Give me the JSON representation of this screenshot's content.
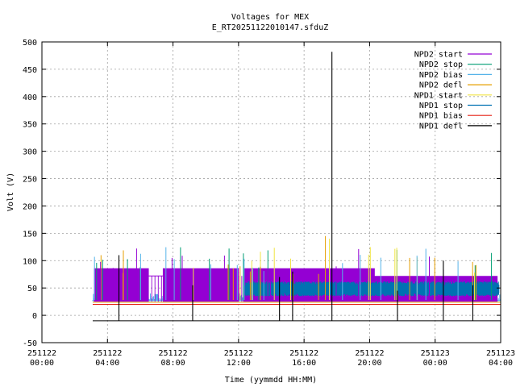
{
  "chart_data": {
    "type": "line",
    "title": "Voltages for MEX",
    "subtitle": "E_RT20251122010147.sfduZ",
    "xlabel": "Time (yymmdd HH:MM)",
    "ylabel": "Volt (V)",
    "xlim": [
      "251122 00:00",
      "251123 04:00"
    ],
    "ylim": [
      -50,
      500
    ],
    "grid": true,
    "legend_position": "top-right",
    "x_ticks": [
      {
        "l1": "251122",
        "l2": "00:00",
        "h": 0
      },
      {
        "l1": "251122",
        "l2": "04:00",
        "h": 4
      },
      {
        "l1": "251122",
        "l2": "08:00",
        "h": 8
      },
      {
        "l1": "251122",
        "l2": "12:00",
        "h": 12
      },
      {
        "l1": "251122",
        "l2": "16:00",
        "h": 16
      },
      {
        "l1": "251122",
        "l2": "20:00",
        "h": 20
      },
      {
        "l1": "251123",
        "l2": "00:00",
        "h": 24
      },
      {
        "l1": "251123",
        "l2": "04:00",
        "h": 28
      }
    ],
    "y_ticks": [
      "-50",
      "0",
      "50",
      "100",
      "150",
      "200",
      "250",
      "300",
      "350",
      "400",
      "450",
      "500"
    ],
    "series": [
      {
        "name": "NPD2 start",
        "color": "#9400d3"
      },
      {
        "name": "NPD2 stop",
        "color": "#009e73"
      },
      {
        "name": "NPD2 bias",
        "color": "#56b4e9"
      },
      {
        "name": "NPD2 defl",
        "color": "#e69f00"
      },
      {
        "name": "NPD1 start",
        "color": "#f0e442"
      },
      {
        "name": "NPD1 stop",
        "color": "#0072b2"
      },
      {
        "name": "NPD1 bias",
        "color": "#e51e10"
      },
      {
        "name": "NPD1 defl",
        "color": "#000000"
      }
    ],
    "data_window_h": [
      3.1,
      28
    ],
    "npd1_defl_spikes": [
      {
        "h": 4.7,
        "v": 110
      },
      {
        "h": 9.2,
        "v": 55
      },
      {
        "h": 14.5,
        "v": 70
      },
      {
        "h": 15.3,
        "v": 80
      },
      {
        "h": 17.7,
        "v": 482
      },
      {
        "h": 21.7,
        "v": 45
      },
      {
        "h": 24.5,
        "v": 100
      },
      {
        "h": 26.3,
        "v": 55
      }
    ]
  }
}
